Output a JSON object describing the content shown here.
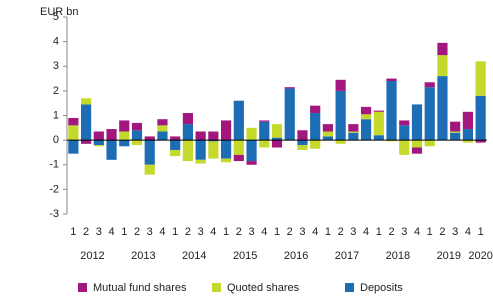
{
  "chart_data": {
    "type": "stacked_bar",
    "y_label": "EUR bn",
    "categories": [
      "1",
      "2",
      "3",
      "4",
      "1",
      "2",
      "3",
      "4",
      "1",
      "2",
      "3",
      "4",
      "1",
      "2",
      "3",
      "4",
      "1",
      "2",
      "3",
      "4",
      "1",
      "2",
      "3",
      "4",
      "1",
      "2",
      "3",
      "4",
      "1",
      "2",
      "3",
      "4",
      "1"
    ],
    "years": [
      "2012",
      "2013",
      "2014",
      "2015",
      "2016",
      "2017",
      "2018",
      "2019",
      "2020"
    ],
    "series": [
      {
        "name": "Mutual fund shares",
        "color": "#a2177e",
        "values": [
          0.3,
          -0.15,
          0.35,
          0.45,
          0.45,
          0.3,
          0.15,
          0.25,
          0.15,
          0.45,
          0.35,
          0.35,
          0.8,
          -0.25,
          -0.15,
          0.05,
          -0.3,
          0.05,
          0.4,
          0.3,
          0.3,
          0.45,
          0.3,
          0.3,
          0.05,
          0.1,
          0.2,
          -0.25,
          0.2,
          0.5,
          0.4,
          0.7,
          -0.1
        ]
      },
      {
        "name": "Quoted shares",
        "color": "#c5d92d",
        "values": [
          0.6,
          0.25,
          -0.05,
          0,
          0.35,
          -0.2,
          -0.4,
          0.25,
          -0.25,
          -0.85,
          -0.15,
          -0.7,
          -0.15,
          -0.6,
          0.5,
          -0.3,
          0.55,
          0,
          -0.2,
          -0.35,
          0.2,
          -0.15,
          0.05,
          0.2,
          0.95,
          -0.05,
          -0.6,
          -0.3,
          -0.25,
          0.85,
          0.05,
          -0.1,
          1.4
        ]
      },
      {
        "name": "Deposits",
        "color": "#1c6db3",
        "values": [
          -0.55,
          1.45,
          -0.2,
          -0.8,
          -0.25,
          0.4,
          -1.0,
          0.35,
          -0.4,
          0.65,
          -0.8,
          -0.05,
          -0.75,
          1.6,
          -0.85,
          0.75,
          0.1,
          2.1,
          -0.2,
          1.1,
          0.15,
          2.0,
          0.3,
          0.85,
          0.2,
          2.4,
          0.6,
          1.45,
          2.15,
          2.6,
          0.3,
          0.45,
          1.8
        ]
      }
    ],
    "ylim": [
      -3,
      5
    ],
    "yticks": [
      -3,
      -2,
      -1,
      0,
      1,
      2,
      3,
      4,
      5
    ]
  }
}
